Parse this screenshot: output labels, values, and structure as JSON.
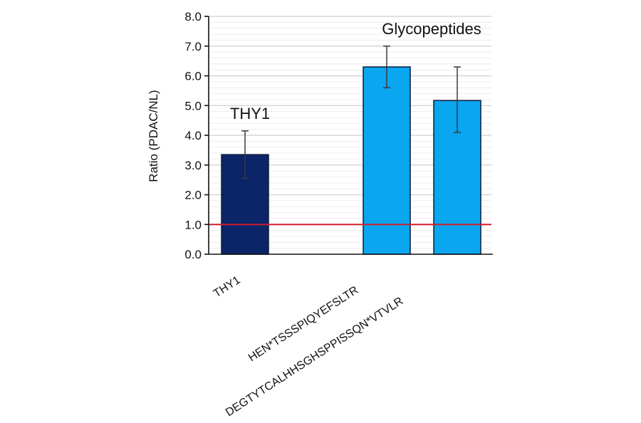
{
  "chart_data": {
    "type": "bar",
    "title": "",
    "xlabel": "",
    "ylabel": "Ratio (PDAC/NL)",
    "ylim": [
      0,
      8
    ],
    "yticks": [
      "0.0",
      "1.0",
      "2.0",
      "3.0",
      "4.0",
      "5.0",
      "6.0",
      "7.0",
      "8.0"
    ],
    "grid": true,
    "legend": null,
    "categories": [
      "THY1",
      "HEN*TSSSPIQYEFSLTR",
      "DEGTYTCALHHSGHSPPISSQN*VTVLR"
    ],
    "values": [
      3.35,
      6.3,
      5.17
    ],
    "error_low": [
      2.55,
      5.6,
      4.1
    ],
    "error_high": [
      4.15,
      7.0,
      6.3
    ],
    "bar_colors": [
      "#0c2468",
      "#0aa6ef",
      "#0aa6ef"
    ],
    "reference_line": {
      "y": 1.0,
      "color": "#d01c2c"
    },
    "annotations": [
      {
        "text": "THY1",
        "near": "THY1"
      },
      {
        "text": "Glycopeptides",
        "near": "HEN*TSSSPIQYEFSLTR"
      }
    ]
  },
  "labels": {
    "ylabel": "Ratio (PDAC/NL)",
    "annot_thy1": "THY1",
    "annot_glyco": "Glycopeptides",
    "cat0": "THY1",
    "cat1": "HEN*TSSSPIQYEFSLTR",
    "cat2": "DEGTYTCALHHSGHSPPISSQN*VTVLR",
    "ticks": [
      "0.0",
      "1.0",
      "2.0",
      "3.0",
      "4.0",
      "5.0",
      "6.0",
      "7.0",
      "8.0"
    ]
  }
}
